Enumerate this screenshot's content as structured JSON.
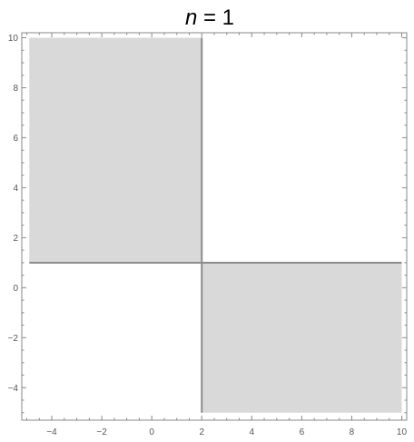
{
  "chart_data": {
    "type": "area",
    "title": {
      "prefix": "n",
      "rest": " = 1"
    },
    "xlabel": "",
    "ylabel": "",
    "xlim": [
      -5.2,
      10.2
    ],
    "ylim": [
      -5.3,
      10.2
    ],
    "x_ticks": [
      -4,
      -2,
      0,
      2,
      4,
      6,
      8,
      10
    ],
    "y_ticks": [
      -4,
      -2,
      0,
      2,
      4,
      6,
      8,
      10
    ],
    "x_tick_labels": [
      "−4",
      "−2",
      "0",
      "2",
      "4",
      "6",
      "8",
      "10"
    ],
    "y_tick_labels": [
      "−4",
      "−2",
      "0",
      "2",
      "4",
      "6",
      "8",
      "10"
    ],
    "regions": [
      {
        "name": "upper-left-region",
        "x_min": -4.9,
        "x_max": 2,
        "y_min": 1,
        "y_max": 10
      },
      {
        "name": "lower-right-region",
        "x_min": 2,
        "x_max": 10,
        "y_min": -5,
        "y_max": 1
      }
    ],
    "boundary_lines": [
      {
        "x1": -4.9,
        "y1": 1,
        "x2": 10,
        "y2": 1
      },
      {
        "x1": 2,
        "y1": -5,
        "x2": 2,
        "y2": 10
      }
    ],
    "colors": {
      "fill": "#d9d9d9",
      "boundary": "#8c8c8c",
      "frame": "#888888",
      "text": "#555555"
    },
    "grid": false,
    "legend": "none"
  }
}
